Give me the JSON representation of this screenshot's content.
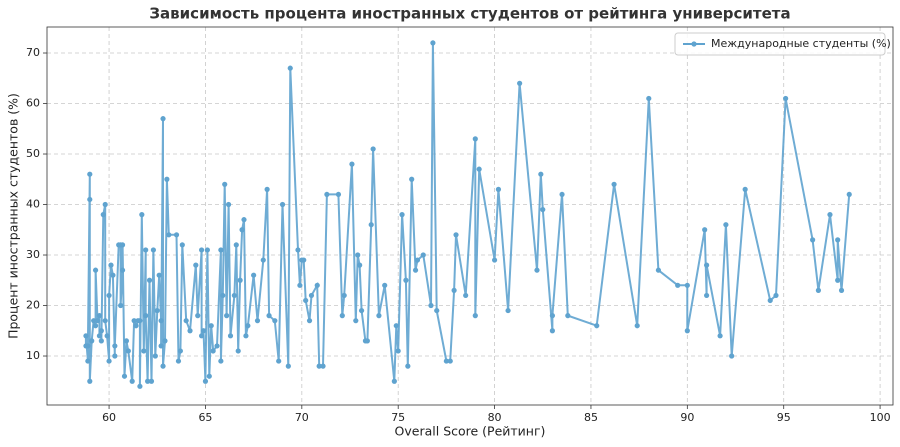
{
  "chart_data": {
    "type": "line",
    "title": "Зависимость процента иностранных студентов от рейтинга университета",
    "x_label": "Overall Score (Рейтинг)",
    "y_label": "Процент иностранных студентов (%)",
    "x": [
      58.8,
      58.8,
      58.9,
      58.9,
      59.0,
      59.0,
      59.0,
      59.1,
      59.2,
      59.3,
      59.3,
      59.4,
      59.5,
      59.5,
      59.6,
      59.6,
      59.7,
      59.8,
      59.8,
      59.9,
      60.0,
      60.0,
      60.1,
      60.2,
      60.3,
      60.3,
      60.5,
      60.6,
      60.6,
      60.7,
      60.7,
      60.8,
      60.9,
      61.0,
      61.2,
      61.3,
      61.4,
      61.5,
      61.6,
      61.6,
      61.7,
      61.8,
      61.9,
      61.9,
      62.0,
      62.1,
      62.2,
      62.3,
      62.4,
      62.5,
      62.6,
      62.7,
      62.7,
      62.8,
      62.8,
      62.9,
      63.0,
      63.1,
      63.5,
      63.6,
      63.7,
      63.8,
      64.0,
      64.2,
      64.5,
      64.6,
      64.8,
      64.8,
      64.9,
      65.0,
      65.1,
      65.2,
      65.3,
      65.4,
      65.6,
      65.8,
      65.8,
      65.9,
      66.0,
      66.1,
      66.2,
      66.3,
      66.5,
      66.6,
      66.7,
      66.8,
      66.9,
      67.0,
      67.1,
      67.2,
      67.5,
      67.7,
      68.0,
      68.2,
      68.3,
      68.6,
      68.8,
      69.0,
      69.3,
      69.4,
      69.8,
      69.9,
      70.0,
      70.1,
      70.2,
      70.4,
      70.5,
      70.8,
      70.9,
      71.1,
      71.3,
      71.9,
      72.1,
      72.2,
      72.6,
      72.8,
      72.9,
      73.0,
      73.1,
      73.3,
      73.4,
      73.6,
      73.7,
      74.0,
      74.3,
      74.8,
      74.9,
      75.0,
      75.2,
      75.4,
      75.5,
      75.7,
      75.9,
      76.0,
      76.3,
      76.7,
      76.8,
      77.0,
      77.5,
      77.7,
      77.9,
      78.0,
      78.5,
      79.0,
      79.0,
      79.2,
      80.0,
      80.2,
      80.7,
      81.3,
      82.2,
      82.4,
      82.5,
      83.0,
      83.0,
      83.5,
      83.8,
      85.3,
      86.2,
      87.4,
      88.0,
      88.5,
      89.5,
      90.0,
      90.0,
      90.9,
      91.0,
      91.0,
      91.7,
      92.0,
      92.3,
      93.0,
      94.3,
      94.6,
      95.1,
      96.5,
      96.8,
      97.4,
      97.8,
      97.8,
      98.0,
      98.4
    ],
    "series": [
      {
        "name": "Международные студенты (%)",
        "color": "#5fa3cf",
        "values": [
          12,
          14,
          9,
          12,
          46,
          41,
          5,
          13,
          17,
          16,
          27,
          17,
          18,
          14,
          15,
          13,
          38,
          40,
          17,
          14,
          9,
          22,
          28,
          26,
          10,
          12,
          32,
          32,
          20,
          27,
          32,
          6,
          13,
          11,
          5,
          17,
          16,
          17,
          17,
          4,
          38,
          11,
          31,
          18,
          5,
          25,
          5,
          31,
          10,
          19,
          26,
          17,
          12,
          57,
          8,
          13,
          45,
          34,
          34,
          9,
          11,
          32,
          17,
          15,
          28,
          18,
          31,
          14,
          15,
          5,
          31,
          6,
          16,
          11,
          12,
          31,
          9,
          22,
          44,
          18,
          40,
          14,
          22,
          32,
          11,
          25,
          35,
          37,
          14,
          16,
          26,
          17,
          29,
          43,
          18,
          17,
          9,
          40,
          8,
          67,
          31,
          24,
          29,
          29,
          21,
          17,
          22,
          24,
          8,
          8,
          42,
          42,
          18,
          22,
          48,
          17,
          30,
          28,
          19,
          13,
          13,
          36,
          51,
          18,
          24,
          5,
          16,
          11,
          38,
          25,
          8,
          45,
          27,
          29,
          30,
          20,
          72,
          19,
          9,
          9,
          23,
          34,
          22,
          53,
          18,
          47,
          29,
          43,
          19,
          64,
          27,
          46,
          39,
          15,
          18,
          42,
          18,
          16,
          44,
          16,
          61,
          27,
          24,
          24,
          15,
          35,
          22,
          28,
          14,
          36,
          10,
          43,
          21,
          22,
          61,
          33,
          23,
          38,
          25,
          33,
          23,
          42
        ]
      }
    ],
    "xlim": [
      56.78,
      100.67
    ],
    "ylim": [
      0.3,
      75.15
    ],
    "xticks": [
      60,
      65,
      70,
      75,
      80,
      85,
      90,
      95,
      100
    ],
    "yticks": [
      10,
      20,
      30,
      40,
      50,
      60,
      70
    ],
    "grid": true,
    "legend": "upper right"
  }
}
